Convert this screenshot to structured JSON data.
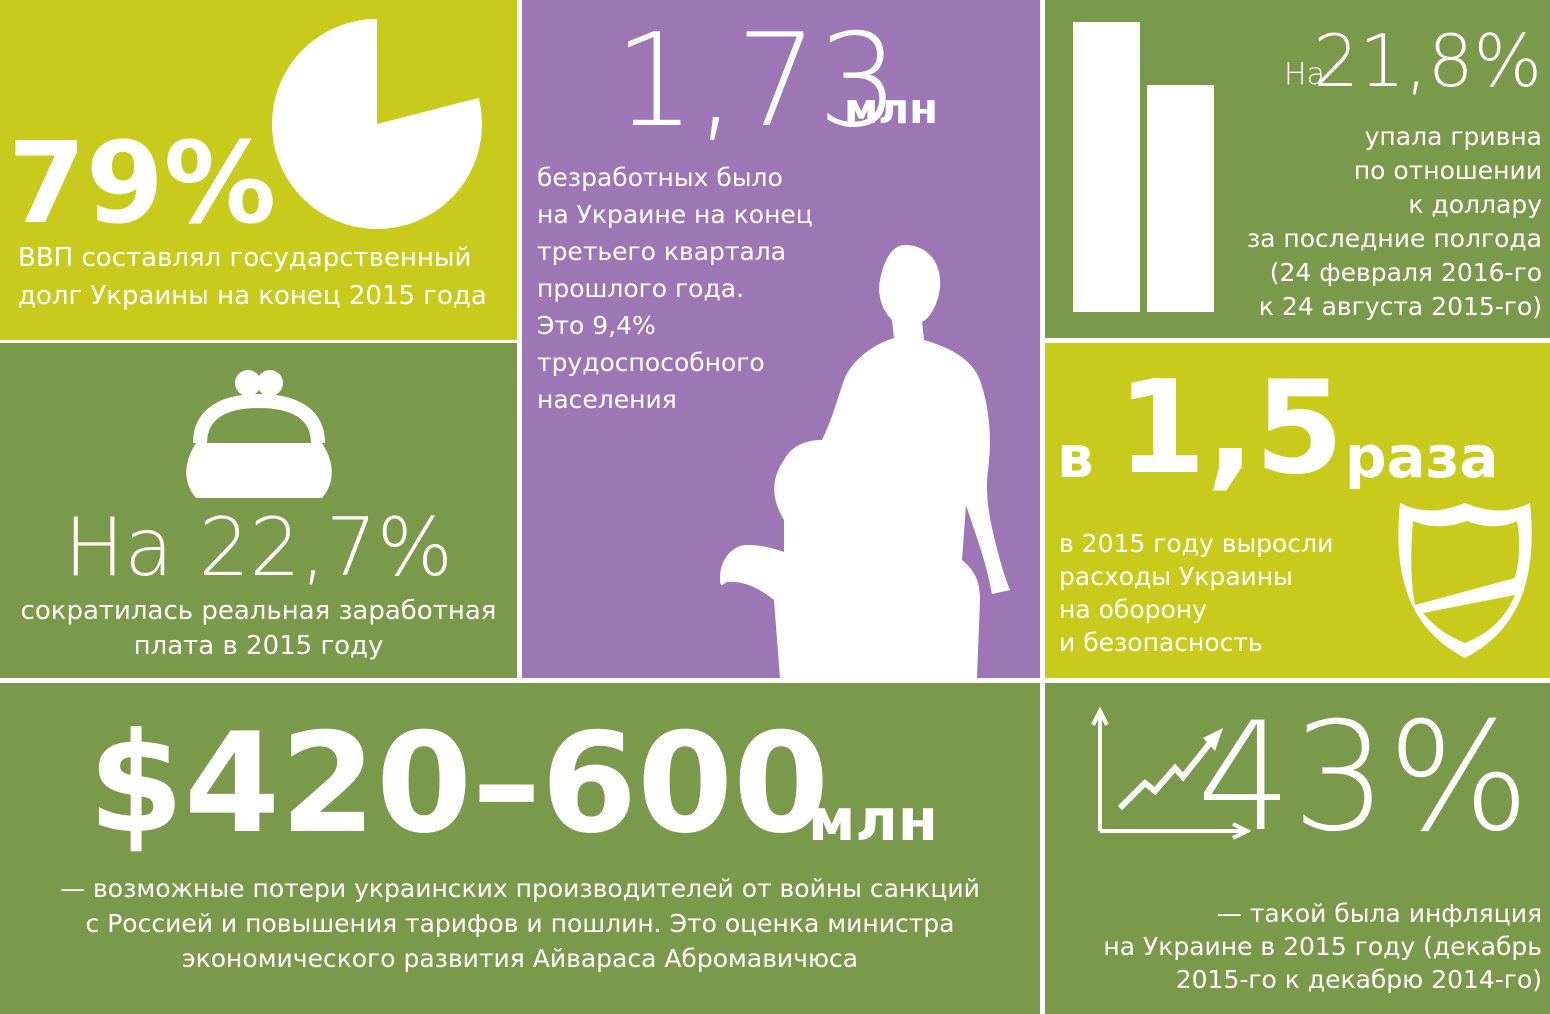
{
  "tiles": [
    {
      "value": 79,
      "value_label": "79%",
      "text": [
        "ВВП составлял государственный",
        "долг Украины на конец 2015 года"
      ]
    },
    {
      "headline": "1,73",
      "unit": "млн",
      "text": [
        "безработных было",
        "на Украине на конец",
        "третьего квартала",
        "прошлого года.",
        "Это 9,4%",
        "трудоспособного",
        "населения"
      ]
    },
    {
      "prefix": "На",
      "headline": "21,8%",
      "text": [
        "упала гривна",
        "по отношении",
        "к доллару",
        "за последние полгода",
        "(24 февраля 2016-го",
        "к 24 августа 2015-го)"
      ]
    },
    {
      "headline": "На 22,7%",
      "text": [
        "сократилась реальная заработная",
        "плата в 2015 году"
      ]
    },
    {
      "prefix": "в",
      "headline": "1,5",
      "unit": "раза",
      "text": [
        "в 2015 году выросли",
        "расходы Украины",
        "на оборону",
        "и безопасность"
      ]
    },
    {
      "headline": "$420–600",
      "unit": "млн",
      "text": [
        "— возможные потери украинских производителей от войны санкций",
        "с Россией и повышения тарифов и пошлин. Это оценка министра",
        "экономического развития Айвараса Абромавичюса"
      ]
    },
    {
      "headline": "43%",
      "text": [
        "— такой была инфляция",
        "на Украине в 2015 году (декабрь",
        "2015-го к декабрю 2014-го)"
      ]
    }
  ]
}
